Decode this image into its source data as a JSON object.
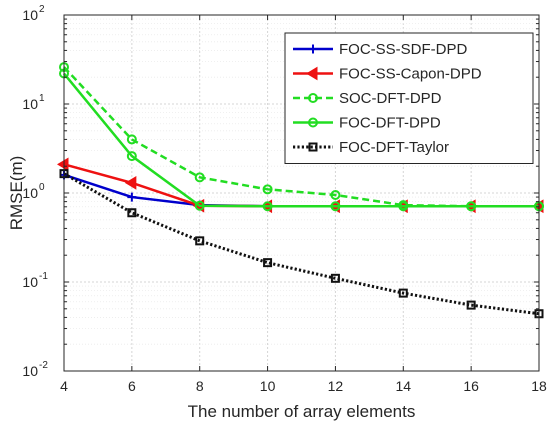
{
  "chart_data": {
    "type": "line",
    "title": "",
    "xlabel": "The number of array elements",
    "ylabel": "RMSE(m)",
    "yscale": "log",
    "xlim": [
      4,
      18
    ],
    "ylim": [
      0.01,
      100
    ],
    "x_ticks": [
      4,
      6,
      8,
      10,
      12,
      14,
      16,
      18
    ],
    "x_tick_labels": [
      "4",
      "6",
      "8",
      "10",
      "12",
      "14",
      "16",
      "18"
    ],
    "y_ticks": [
      0.01,
      0.1,
      1,
      10,
      100
    ],
    "y_tick_labels": [
      {
        "base": "10",
        "exp": "-2"
      },
      {
        "base": "10",
        "exp": "-1"
      },
      {
        "base": "10",
        "exp": "0"
      },
      {
        "base": "10",
        "exp": "1"
      },
      {
        "base": "10",
        "exp": "2"
      }
    ],
    "grid": true,
    "legend": "top-right",
    "x": [
      4,
      6,
      8,
      10,
      12,
      14,
      16,
      18
    ],
    "series": [
      {
        "name": "FOC-SS-SDF-DPD",
        "color": "#0000cc",
        "marker": "plus",
        "dash": "solid",
        "values": [
          1.6,
          0.9,
          0.73,
          0.71,
          0.71,
          0.71,
          0.71,
          0.71
        ]
      },
      {
        "name": "FOC-SS-Capon-DPD",
        "color": "#ee1111",
        "marker": "triangle-left",
        "dash": "solid",
        "values": [
          2.1,
          1.3,
          0.72,
          0.71,
          0.71,
          0.71,
          0.71,
          0.71
        ]
      },
      {
        "name": "SOC-DFT-DPD",
        "color": "#22dd22",
        "marker": "circle",
        "dash": "dashed",
        "values": [
          26,
          4.0,
          1.5,
          1.1,
          0.95,
          0.73,
          0.71,
          0.71
        ]
      },
      {
        "name": "FOC-DFT-DPD",
        "color": "#22dd22",
        "marker": "circle",
        "dash": "solid",
        "values": [
          22,
          2.6,
          0.72,
          0.71,
          0.71,
          0.71,
          0.71,
          0.71
        ]
      },
      {
        "name": "FOC-DFT-Taylor",
        "color": "#111111",
        "marker": "square",
        "dash": "dotted",
        "values": [
          1.65,
          0.6,
          0.29,
          0.165,
          0.11,
          0.075,
          0.055,
          0.044
        ]
      }
    ]
  }
}
